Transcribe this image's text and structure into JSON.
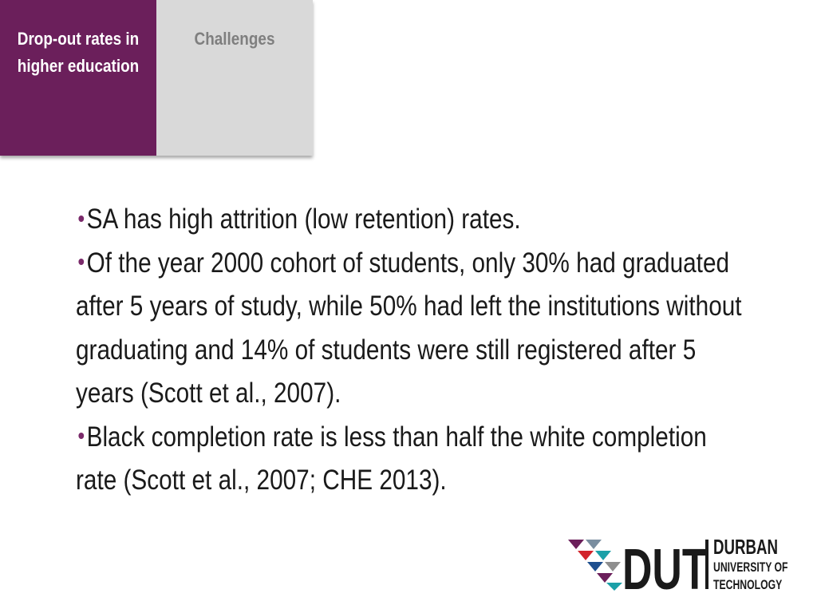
{
  "tabs": [
    {
      "label": "Drop-out rates in higher education",
      "active": true
    },
    {
      "label": "Challenges",
      "active": false
    }
  ],
  "bullets": [
    "SA has high attrition (low retention) rates.",
    "Of the year 2000 cohort of students, only 30% had graduated after 5 years of study, while 50% had left the institutions without graduating and 14% of students were still registered after 5 years (Scott et al., 2007).",
    "Black completion rate is less than half the white completion rate (Scott et al., 2007; CHE 2013)."
  ],
  "logo": {
    "mark": "DUT",
    "name_lines": [
      "DURBAN",
      "UNIVERSITY OF",
      "TECHNOLOGY"
    ]
  }
}
